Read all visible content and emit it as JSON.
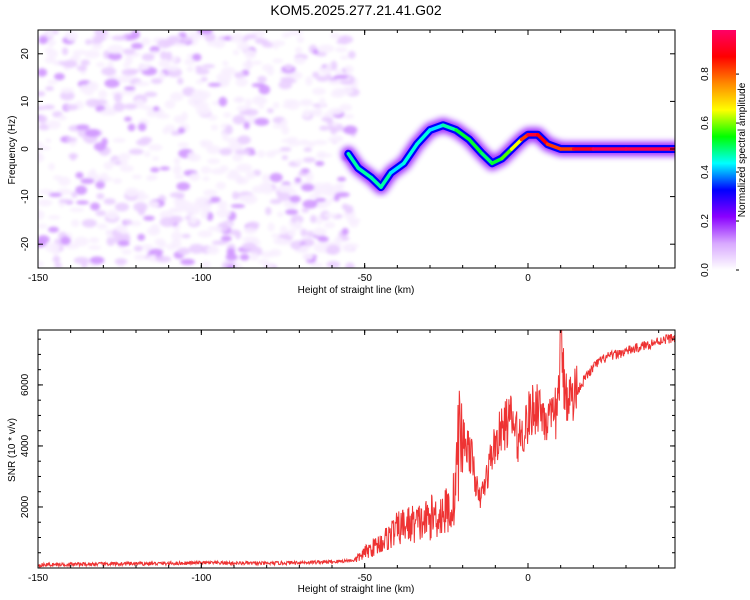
{
  "title": "KOM5.2025.277.21.41.G02",
  "chart_data": [
    {
      "type": "heatmap",
      "name": "spectrogram",
      "xlabel": "Height of straight line (km)",
      "ylabel": "Frequency (Hz)",
      "xlim": [
        -150,
        45
      ],
      "ylim": [
        -25,
        25
      ],
      "xticks": [
        "-150",
        "-100",
        "-50",
        "0"
      ],
      "xtick_values": [
        -150,
        -100,
        -50,
        0
      ],
      "yticks": [
        "-20",
        "-10",
        "0",
        "10",
        "20"
      ],
      "ytick_values": [
        -20,
        -10,
        0,
        10,
        20
      ],
      "signal_track": {
        "x": [
          -55,
          -52,
          -48,
          -45,
          -42,
          -38,
          -34,
          -30,
          -26,
          -22,
          -18,
          -14,
          -11,
          -8,
          -5,
          -2,
          0,
          3,
          6,
          10,
          14,
          20,
          30,
          45
        ],
        "freq": [
          -1,
          -4,
          -6,
          -8,
          -5,
          -3,
          1,
          4,
          5,
          4,
          2,
          -1,
          -3,
          -2,
          0,
          2,
          3,
          3,
          1,
          0,
          0,
          0,
          0,
          0
        ],
        "amplitude": [
          0.45,
          0.5,
          0.45,
          0.5,
          0.45,
          0.4,
          0.5,
          0.4,
          0.45,
          0.5,
          0.55,
          0.5,
          0.5,
          0.55,
          0.6,
          0.7,
          0.95,
          0.9,
          0.85,
          0.8,
          0.85,
          0.95,
          0.95,
          0.95
        ]
      },
      "noise_region_x": [
        -150,
        -53
      ],
      "noise_amplitude_range": [
        0.0,
        0.15
      ]
    },
    {
      "type": "colorbar",
      "name": "colorbar",
      "label": "Normalized spectral amplitude",
      "range": [
        0.0,
        0.98
      ],
      "ticks": [
        "0.0",
        "0.2",
        "0.4",
        "0.6",
        "0.8"
      ],
      "tick_values": [
        0.0,
        0.2,
        0.4,
        0.6,
        0.8
      ],
      "colors": [
        "#ffffff",
        "#d8a8ff",
        "#8a00ff",
        "#0000ff",
        "#00ffff",
        "#00ff00",
        "#ffff00",
        "#ff8800",
        "#ff0000",
        "#ff0066"
      ]
    },
    {
      "type": "line",
      "name": "snr",
      "xlabel": "Height of straight line (km)",
      "ylabel": "SNR (10 * v/v)",
      "xlim": [
        -150,
        45
      ],
      "ylim": [
        0,
        7800
      ],
      "xticks": [
        "-150",
        "-100",
        "-50",
        "0"
      ],
      "xtick_values": [
        -150,
        -100,
        -50,
        0
      ],
      "yticks": [
        "2000",
        "4000",
        "6000"
      ],
      "ytick_values": [
        2000,
        4000,
        6000
      ],
      "color": "#ee3333",
      "x": [
        -150,
        -140,
        -130,
        -120,
        -110,
        -100,
        -90,
        -80,
        -70,
        -60,
        -53,
        -50,
        -47,
        -44,
        -41,
        -38,
        -35,
        -32,
        -29,
        -26,
        -23,
        -21,
        -19,
        -17,
        -15,
        -13,
        -11,
        -9,
        -7,
        -5,
        -3,
        -1,
        1,
        3,
        5,
        7,
        9,
        10,
        11,
        13,
        15,
        18,
        21,
        24,
        27,
        30,
        33,
        36,
        39,
        42,
        45
      ],
      "y": [
        100,
        120,
        130,
        140,
        150,
        170,
        160,
        150,
        180,
        200,
        260,
        500,
        700,
        900,
        1200,
        1400,
        1450,
        1500,
        1700,
        1800,
        2000,
        4300,
        4200,
        3500,
        2200,
        2800,
        3800,
        4300,
        4700,
        4900,
        4200,
        4600,
        5100,
        5400,
        5000,
        4700,
        5200,
        7300,
        6100,
        5500,
        5800,
        6300,
        6700,
        6900,
        7000,
        7100,
        7200,
        7300,
        7400,
        7500,
        7550
      ]
    }
  ]
}
